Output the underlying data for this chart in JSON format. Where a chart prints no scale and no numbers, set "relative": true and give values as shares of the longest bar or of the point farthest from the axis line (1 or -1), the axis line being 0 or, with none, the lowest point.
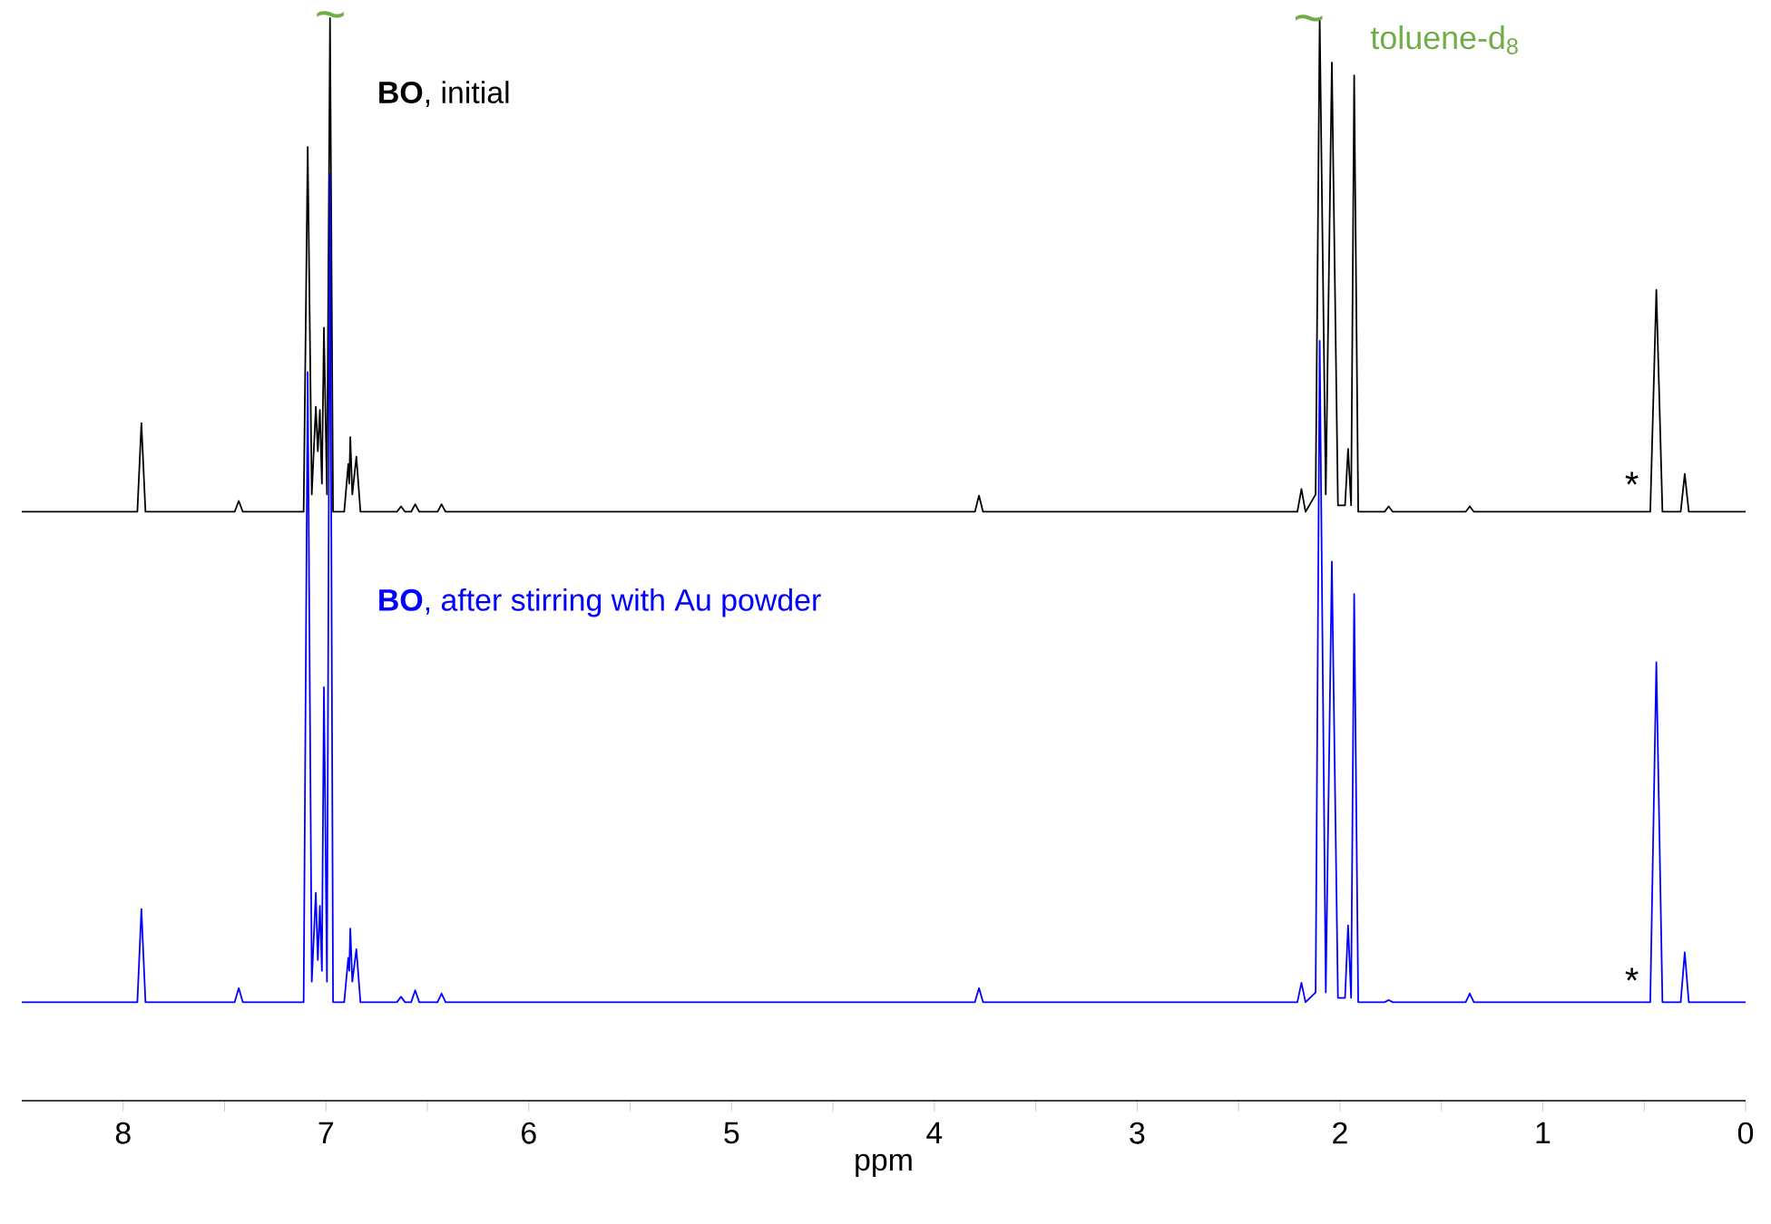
{
  "chart_data": {
    "type": "line",
    "relative": true,
    "xlabel": "ppm",
    "xlim": [
      8.5,
      0
    ],
    "xticks": [
      8,
      {
        "value": 7.5,
        "label": null
      },
      7,
      {
        "value": 6.5,
        "label": null
      },
      6,
      {
        "value": 5.5,
        "label": null
      },
      5,
      {
        "value": 4.5,
        "label": null
      },
      4,
      {
        "value": 3.5,
        "label": null
      },
      3,
      {
        "value": 2.5,
        "label": null
      },
      2,
      {
        "value": 1.5,
        "label": null
      },
      1,
      {
        "value": 0.5,
        "label": null
      },
      0
    ],
    "grid": false,
    "legend": false,
    "marker": "none",
    "line_style": "solid",
    "series": [
      {
        "name": "**BO**, initial",
        "color": "#000000",
        "x": [
          8.5,
          7.93,
          7.91,
          7.89,
          7.45,
          7.43,
          7.41,
          7.11,
          7.09,
          7.07,
          7.05,
          7.04,
          7.03,
          7.02,
          7.01,
          6.995,
          6.98,
          6.965,
          6.91,
          6.89,
          6.885,
          6.88,
          6.87,
          6.85,
          6.83,
          6.65,
          6.63,
          6.61,
          6.58,
          6.56,
          6.54,
          6.45,
          6.43,
          6.41,
          3.8,
          3.78,
          3.76,
          2.21,
          2.19,
          2.17,
          2.12,
          2.1,
          2.07,
          2.04,
          2.01,
          1.975,
          1.96,
          1.945,
          1.93,
          1.91,
          1.78,
          1.76,
          1.74,
          1.38,
          1.36,
          1.34,
          0.47,
          0.44,
          0.41,
          0.32,
          0.3,
          0.28,
          0
        ],
        "values": [
          0.544,
          0.544,
          0.626,
          0.544,
          0.544,
          0.554,
          0.544,
          0.544,
          0.881,
          0.56,
          0.641,
          0.6,
          0.638,
          0.57,
          0.714,
          0.56,
          1.0,
          0.544,
          0.544,
          0.588,
          0.57,
          0.613,
          0.56,
          0.595,
          0.544,
          0.544,
          0.549,
          0.544,
          0.544,
          0.551,
          0.544,
          0.544,
          0.551,
          0.544,
          0.544,
          0.559,
          0.544,
          0.544,
          0.565,
          0.544,
          0.56,
          1.0,
          0.56,
          0.959,
          0.55,
          0.55,
          0.602,
          0.55,
          0.947,
          0.544,
          0.544,
          0.549,
          0.544,
          0.544,
          0.549,
          0.544,
          0.544,
          0.749,
          0.544,
          0.544,
          0.579,
          0.544,
          0.544
        ]
      },
      {
        "name": "**BO**, after stirring with Au powder",
        "color": "#0000ff",
        "x": [
          8.5,
          7.93,
          7.91,
          7.89,
          7.45,
          7.43,
          7.41,
          7.11,
          7.09,
          7.07,
          7.05,
          7.04,
          7.03,
          7.02,
          7.01,
          6.995,
          6.98,
          6.965,
          6.91,
          6.89,
          6.885,
          6.88,
          6.87,
          6.85,
          6.83,
          6.65,
          6.63,
          6.61,
          6.58,
          6.56,
          6.54,
          6.45,
          6.43,
          6.41,
          3.8,
          3.78,
          3.76,
          2.21,
          2.19,
          2.17,
          2.12,
          2.1,
          2.07,
          2.04,
          2.01,
          1.975,
          1.96,
          1.945,
          1.93,
          1.91,
          1.78,
          1.76,
          1.74,
          1.38,
          1.36,
          1.34,
          0.47,
          0.44,
          0.41,
          0.32,
          0.3,
          0.28,
          0
        ],
        "values": [
          0.091,
          0.091,
          0.177,
          0.091,
          0.091,
          0.104,
          0.091,
          0.091,
          0.673,
          0.11,
          0.192,
          0.13,
          0.18,
          0.12,
          0.382,
          0.11,
          0.856,
          0.091,
          0.091,
          0.132,
          0.12,
          0.159,
          0.11,
          0.14,
          0.091,
          0.091,
          0.096,
          0.091,
          0.091,
          0.102,
          0.091,
          0.091,
          0.099,
          0.091,
          0.091,
          0.104,
          0.091,
          0.091,
          0.109,
          0.091,
          0.1,
          0.702,
          0.1,
          0.498,
          0.095,
          0.095,
          0.162,
          0.095,
          0.468,
          0.091,
          0.091,
          0.093,
          0.091,
          0.091,
          0.099,
          0.091,
          0.091,
          0.405,
          0.091,
          0.091,
          0.137,
          0.091,
          0.091
        ]
      }
    ],
    "annotations": [
      "~",
      "~",
      "toluene-d$_{8}$",
      "*",
      "*"
    ]
  }
}
